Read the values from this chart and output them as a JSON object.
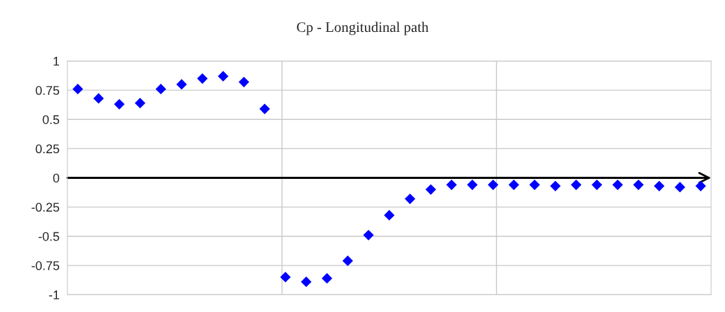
{
  "chart_data": {
    "type": "scatter",
    "title": "Cp - Longitudinal path",
    "categories": [
      null,
      null,
      null,
      null,
      null,
      null,
      null,
      null,
      null,
      null,
      null,
      null,
      null,
      null,
      null,
      null,
      null,
      null,
      null,
      null,
      null,
      null,
      null,
      null,
      null,
      null,
      null,
      null,
      null,
      null,
      null
    ],
    "values": [
      0.76,
      0.68,
      0.63,
      0.64,
      0.76,
      0.8,
      0.85,
      0.87,
      0.82,
      0.59,
      -0.85,
      -0.89,
      -0.86,
      -0.71,
      -0.49,
      -0.32,
      -0.18,
      -0.1,
      -0.06,
      -0.06,
      -0.06,
      -0.06,
      -0.06,
      -0.07,
      -0.06,
      -0.06,
      -0.06,
      -0.06,
      -0.07,
      -0.08,
      -0.07
    ],
    "color": "#0000ff",
    "marker": "diamond",
    "ylim": [
      -1,
      1
    ],
    "yticks": [
      {
        "value": -1,
        "label": "-1"
      },
      {
        "value": -0.75,
        "label": "-0.75"
      },
      {
        "value": -0.5,
        "label": "-0.5"
      },
      {
        "value": -0.25,
        "label": "-0.25"
      },
      0,
      0.25,
      0.5,
      0.75,
      1
    ],
    "tick_labels": "y",
    "grid": "y",
    "legend": false
  }
}
